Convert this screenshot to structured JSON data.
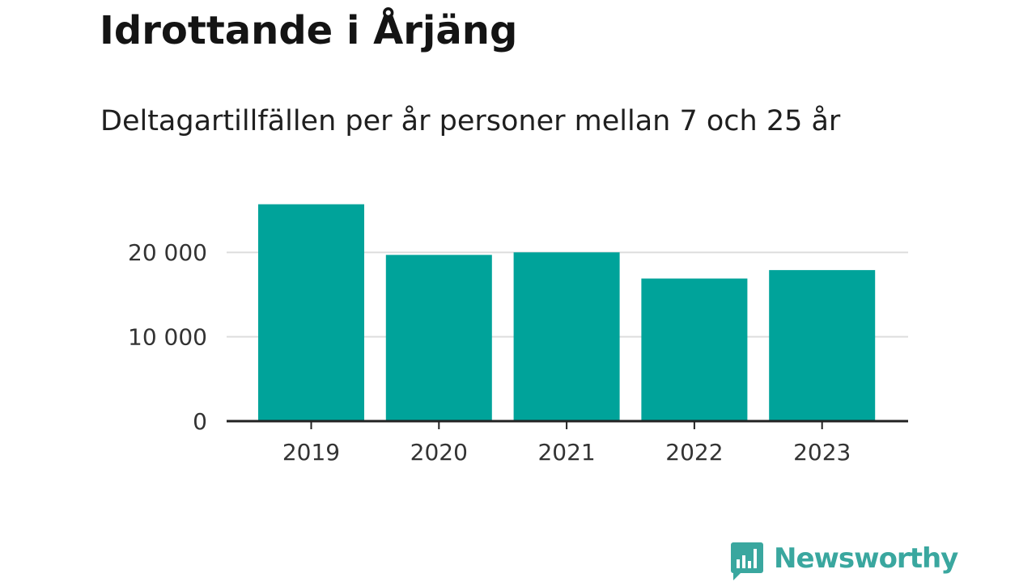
{
  "header": {
    "title": "Idrottande i Årjäng",
    "subtitle": "Deltagartillfällen per år personer mellan 7 och 25 år"
  },
  "chart_data": {
    "type": "bar",
    "title": "Idrottande i Årjäng",
    "subtitle": "Deltagartillfällen per år personer mellan 7 och 25 år",
    "xlabel": "",
    "ylabel": "",
    "categories": [
      "2019",
      "2020",
      "2021",
      "2022",
      "2023"
    ],
    "values": [
      25700,
      19700,
      20000,
      16900,
      17900
    ],
    "ylim": [
      0,
      27000
    ],
    "yticks": [
      0,
      10000,
      20000
    ],
    "ytick_labels": [
      "0",
      "10 000",
      "20 000"
    ],
    "grid": true,
    "bar_color": "#00a39a",
    "grid_color": "#dddddd",
    "axis_color": "#222222"
  },
  "branding": {
    "logo_label": "Newsworthy",
    "logo_icon": "bar-chart-speech-bubble-icon",
    "logo_color": "#3aa79f"
  }
}
